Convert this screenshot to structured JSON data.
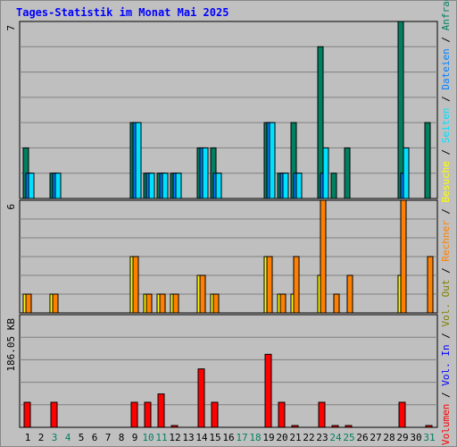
{
  "title": "Tages-Statistik im Monat Mai 2025",
  "colors": {
    "background": "#c0c0c0",
    "plot_area": "#bfbfbf",
    "grid": "#808080",
    "title": "#0000ff",
    "anfragen": "#008060",
    "dateien": "#0080ff",
    "seiten": "#00e0ff",
    "besuche": "#ffff00",
    "rechner": "#ff8000",
    "vol_out": "#808000",
    "vol_in": "#0000ff",
    "volumen": "#ff0000",
    "weekend_label": "#008060",
    "weekday_label": "#000000"
  },
  "legend": {
    "volumen": "Volumen",
    "vol_in": "Vol. In",
    "vol_out": "Vol. Out",
    "rechner": "Rechner",
    "besuche": "Besuche",
    "seiten": "Seiten",
    "dateien": "Dateien",
    "anfragen": "Anfragen",
    "separator": " / "
  },
  "chart_data": {
    "type": "bar",
    "days": [
      "1",
      "2",
      "3",
      "4",
      "5",
      "6",
      "7",
      "8",
      "9",
      "10",
      "11",
      "12",
      "13",
      "14",
      "15",
      "16",
      "17",
      "18",
      "19",
      "20",
      "21",
      "22",
      "23",
      "24",
      "25",
      "26",
      "27",
      "28",
      "29",
      "30",
      "31"
    ],
    "weekend_days": [
      "3",
      "4",
      "10",
      "11",
      "17",
      "18",
      "24",
      "25",
      "31"
    ],
    "panels": [
      {
        "name": "requests",
        "axis_max_label": "7",
        "ylim": [
          0,
          7
        ],
        "series": [
          {
            "name": "Anfragen",
            "key": "anfragen",
            "values": [
              2,
              0,
              1,
              0,
              0,
              0,
              0,
              0,
              3,
              1,
              1,
              1,
              0,
              2,
              2,
              0,
              0,
              0,
              3,
              1,
              3,
              0,
              6,
              1,
              2,
              0,
              0,
              0,
              7,
              0,
              3
            ]
          },
          {
            "name": "Dateien",
            "key": "dateien",
            "values": [
              1,
              0,
              1,
              0,
              0,
              0,
              0,
              0,
              3,
              1,
              1,
              1,
              0,
              2,
              1,
              0,
              0,
              0,
              3,
              1,
              1,
              0,
              1,
              0,
              0,
              0,
              0,
              0,
              1,
              0,
              0
            ]
          },
          {
            "name": "Seiten",
            "key": "seiten",
            "values": [
              1,
              0,
              1,
              0,
              0,
              0,
              0,
              0,
              3,
              1,
              1,
              1,
              0,
              2,
              1,
              0,
              0,
              0,
              3,
              1,
              1,
              0,
              2,
              0,
              0,
              0,
              0,
              0,
              2,
              0,
              0
            ]
          }
        ]
      },
      {
        "name": "visits",
        "axis_max_label": "6",
        "ylim": [
          0,
          6
        ],
        "series": [
          {
            "name": "Besuche",
            "key": "besuche",
            "values": [
              1,
              0,
              1,
              0,
              0,
              0,
              0,
              0,
              3,
              1,
              1,
              1,
              0,
              2,
              1,
              0,
              0,
              0,
              3,
              1,
              1,
              0,
              2,
              0,
              0,
              0,
              0,
              0,
              2,
              0,
              0
            ]
          },
          {
            "name": "Rechner",
            "key": "rechner",
            "values": [
              1,
              0,
              1,
              0,
              0,
              0,
              0,
              0,
              3,
              1,
              1,
              1,
              0,
              2,
              1,
              0,
              0,
              0,
              3,
              1,
              3,
              0,
              6,
              1,
              2,
              0,
              0,
              0,
              6,
              0,
              3
            ]
          }
        ]
      },
      {
        "name": "volume",
        "axis_max_label": "186.05 KB",
        "ylim": [
          0,
          270
        ],
        "series": [
          {
            "name": "Volumen",
            "key": "volumen",
            "values": [
              60,
              0,
              60,
              0,
              0,
              0,
              0,
              0,
              60,
              60,
              80,
              3,
              0,
              140,
              60,
              0,
              0,
              0,
              175,
              60,
              3,
              0,
              60,
              3,
              3,
              0,
              0,
              0,
              60,
              0,
              3
            ]
          }
        ]
      }
    ]
  }
}
